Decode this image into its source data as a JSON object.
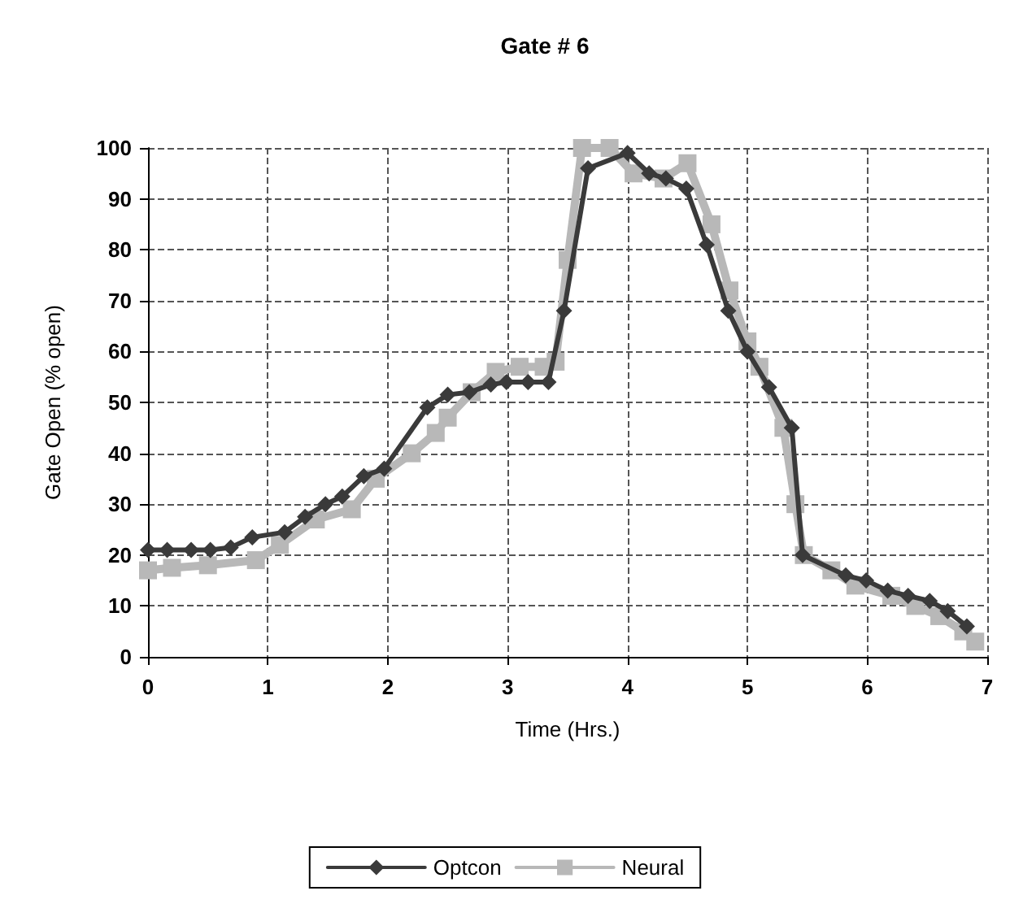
{
  "chart_data": {
    "type": "line",
    "title": "Gate # 6",
    "xlabel": "Time (Hrs.)",
    "ylabel": "Gate Open (% open)",
    "xlim": [
      0,
      7
    ],
    "xticks": [
      0,
      1,
      2,
      3,
      4,
      5,
      6,
      7
    ],
    "ylim": [
      0,
      100
    ],
    "yticks": [
      0,
      10,
      20,
      30,
      40,
      50,
      60,
      70,
      80,
      90,
      100
    ],
    "grid": true,
    "legend": "bottom",
    "series": [
      {
        "name": "Optcon",
        "color": "#3a3a3a",
        "marker": "diamond",
        "x": [
          0,
          0.16,
          0.36,
          0.52,
          0.69,
          0.87,
          1.14,
          1.31,
          1.48,
          1.62,
          1.8,
          1.97,
          2.33,
          2.5,
          2.68,
          2.86,
          2.99,
          3.17,
          3.34,
          3.47,
          3.67,
          4.0,
          4.18,
          4.32,
          4.49,
          4.66,
          4.84,
          5.0,
          5.18,
          5.37,
          5.46,
          5.82,
          5.99,
          6.17,
          6.34,
          6.52,
          6.67,
          6.83
        ],
        "values": [
          21,
          21,
          21,
          21,
          21.5,
          23.5,
          24.5,
          27.5,
          30,
          31.5,
          35.5,
          37,
          49,
          51.5,
          52,
          53.5,
          54,
          54,
          54,
          68,
          96,
          99,
          95,
          94,
          92,
          81,
          68,
          60,
          53,
          45,
          20,
          16,
          15,
          13,
          12,
          11,
          9,
          6
        ]
      },
      {
        "name": "Neural",
        "color": "#b8b8b8",
        "marker": "square",
        "x": [
          0,
          0.2,
          0.5,
          0.9,
          1.1,
          1.4,
          1.7,
          1.9,
          2.2,
          2.4,
          2.5,
          2.7,
          2.9,
          3.1,
          3.3,
          3.4,
          3.5,
          3.62,
          3.85,
          4.05,
          4.3,
          4.5,
          4.7,
          4.85,
          5.0,
          5.1,
          5.3,
          5.4,
          5.47,
          5.7,
          5.9,
          6.2,
          6.4,
          6.6,
          6.8,
          6.9
        ],
        "values": [
          17,
          17.5,
          18,
          19,
          22,
          27,
          29,
          35,
          40,
          44,
          47,
          52,
          56,
          57,
          57,
          58,
          78,
          100,
          100,
          95,
          94,
          97,
          85,
          72,
          62,
          57,
          45,
          30,
          20,
          17,
          14,
          12,
          10,
          8,
          5,
          3
        ]
      }
    ]
  }
}
